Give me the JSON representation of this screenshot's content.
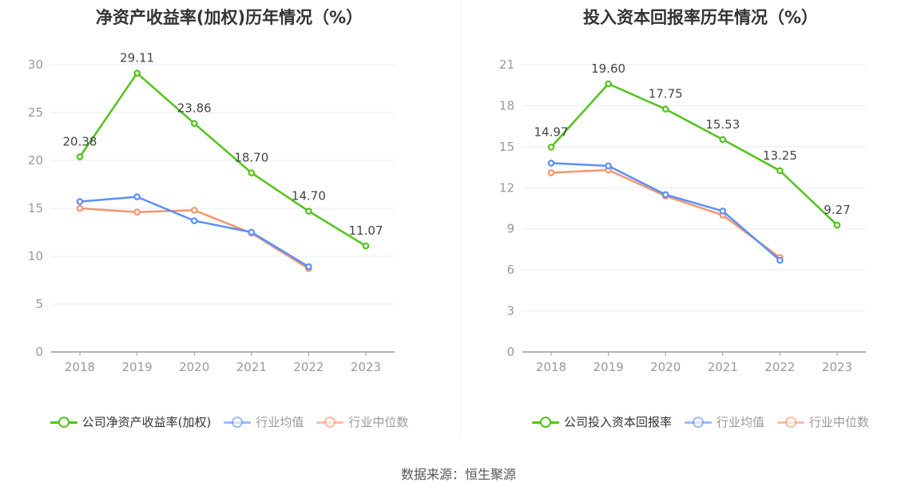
{
  "source_text": "数据来源：恒生聚源",
  "colors": {
    "company": "#52c41a",
    "avg": "#5b8ff9",
    "median": "#f6946d",
    "grid": "#e8ebf2",
    "axis": "#999999"
  },
  "chart_data": [
    {
      "type": "line",
      "title": "净资产收益率(加权)历年情况（%）",
      "categories": [
        "2018",
        "2019",
        "2020",
        "2021",
        "2022",
        "2023"
      ],
      "y_ticks": [
        "0",
        "5",
        "10",
        "15",
        "20",
        "25",
        "30"
      ],
      "ylim": [
        0,
        30
      ],
      "grid": true,
      "legend_position": "bottom",
      "series": [
        {
          "name": "公司净资产收益率(加权)",
          "color": "#52c41a",
          "values": [
            20.38,
            29.11,
            23.86,
            18.7,
            14.7,
            11.07
          ],
          "labels": [
            "20.38",
            "29.11",
            "23.86",
            "18.70",
            "14.70",
            "11.07"
          ]
        },
        {
          "name": "行业均值",
          "color": "#5b8ff9",
          "values": [
            15.7,
            16.2,
            13.7,
            12.5,
            8.9,
            null
          ]
        },
        {
          "name": "行业中位数",
          "color": "#f6946d",
          "values": [
            15.0,
            14.6,
            14.8,
            12.4,
            8.7,
            null
          ]
        }
      ]
    },
    {
      "type": "line",
      "title": "投入资本回报率历年情况（%）",
      "categories": [
        "2018",
        "2019",
        "2020",
        "2021",
        "2022",
        "2023"
      ],
      "y_ticks": [
        "0",
        "3",
        "6",
        "9",
        "12",
        "15",
        "18",
        "21"
      ],
      "ylim": [
        0,
        21
      ],
      "grid": true,
      "legend_position": "bottom",
      "series": [
        {
          "name": "公司投入资本回报率",
          "color": "#52c41a",
          "values": [
            14.97,
            19.6,
            17.75,
            15.53,
            13.25,
            9.27
          ],
          "labels": [
            "14.97",
            "19.60",
            "17.75",
            "15.53",
            "13.25",
            "9.27"
          ]
        },
        {
          "name": "行业均值",
          "color": "#5b8ff9",
          "values": [
            13.8,
            13.6,
            11.5,
            10.3,
            6.7,
            null
          ]
        },
        {
          "name": "行业中位数",
          "color": "#f6946d",
          "values": [
            13.1,
            13.3,
            11.4,
            10.0,
            6.9,
            null
          ]
        }
      ]
    }
  ]
}
